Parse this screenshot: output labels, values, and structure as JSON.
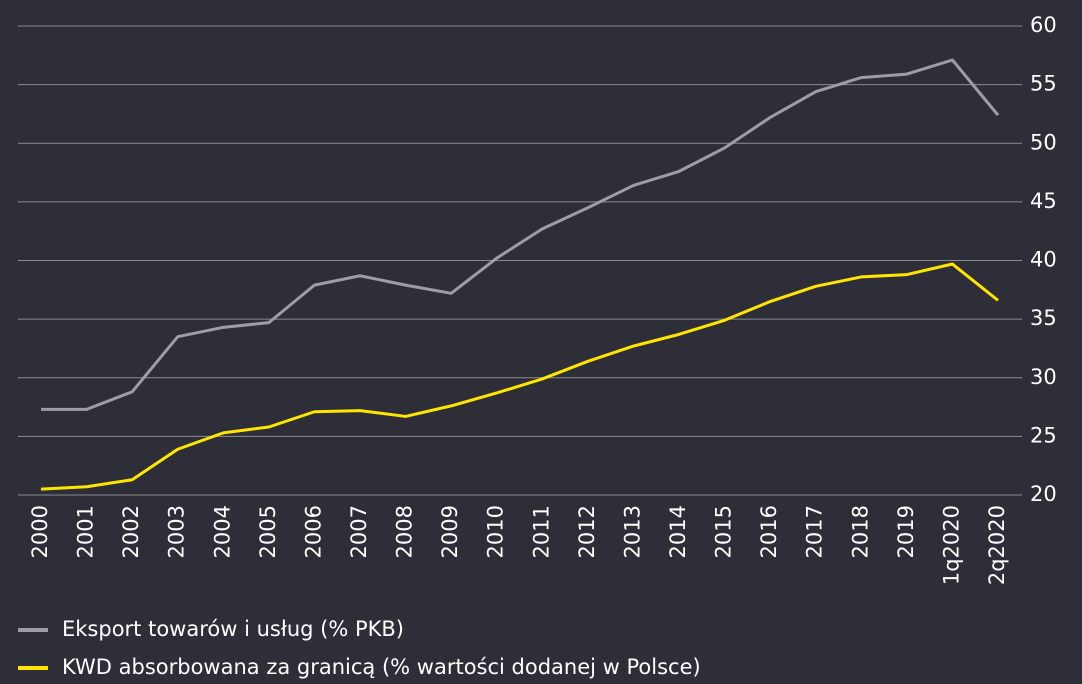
{
  "chart_data": {
    "type": "line",
    "categories": [
      "2000",
      "2001",
      "2002",
      "2003",
      "2004",
      "2005",
      "2006",
      "2007",
      "2008",
      "2009",
      "2010",
      "2011",
      "2012",
      "2013",
      "2014",
      "2015",
      "2016",
      "2017",
      "2018",
      "2019",
      "1q2020",
      "2q2020"
    ],
    "series": [
      {
        "name": "Eksport towarów i usług (% PKB)",
        "color": "#9d9da8",
        "values": [
          27.3,
          27.3,
          28.8,
          33.5,
          34.3,
          34.7,
          37.9,
          38.7,
          37.9,
          37.2,
          40.2,
          42.7,
          44.5,
          46.4,
          47.6,
          49.6,
          52.2,
          54.4,
          55.6,
          55.9,
          57.1,
          52.4
        ]
      },
      {
        "name": "KWD absorbowana za granicą (% wartości dodanej w Polsce)",
        "color": "#ffe600",
        "values": [
          20.5,
          20.7,
          21.3,
          23.9,
          25.3,
          25.8,
          27.1,
          27.2,
          26.7,
          27.6,
          28.7,
          29.9,
          31.4,
          32.7,
          33.7,
          34.9,
          36.5,
          37.8,
          38.6,
          38.8,
          39.7,
          36.6
        ]
      }
    ],
    "ylim": [
      20,
      60
    ],
    "yticks": [
      20,
      25,
      30,
      35,
      40,
      45,
      50,
      55,
      60
    ],
    "grid": true,
    "y_axis_side": "right",
    "legend": "bottom"
  }
}
